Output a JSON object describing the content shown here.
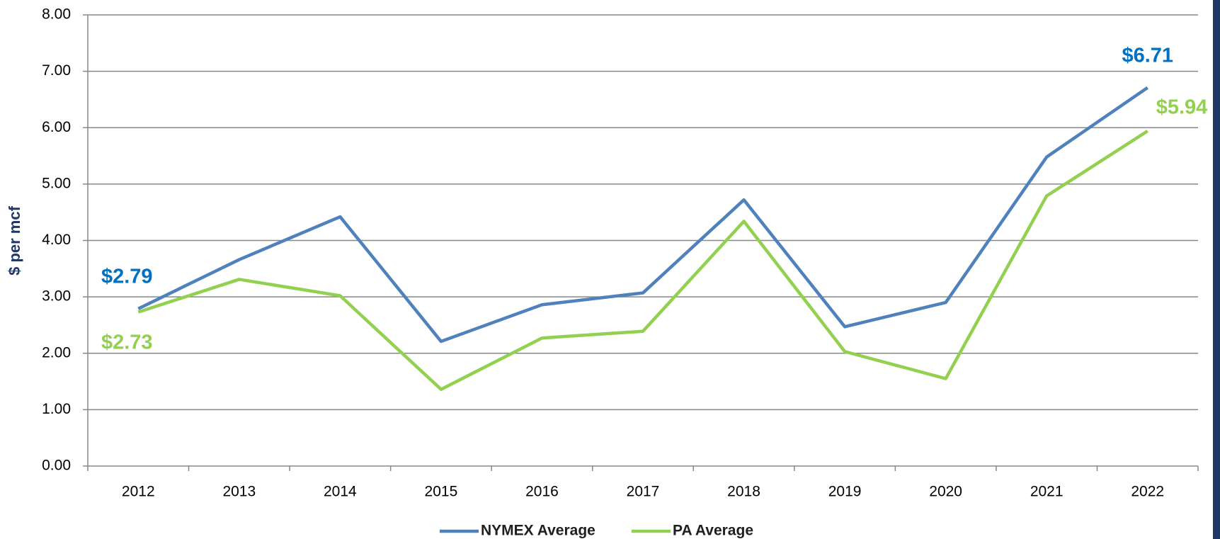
{
  "chart_data": {
    "type": "line",
    "y_label": "$ per mcf",
    "categories": [
      "2012",
      "2013",
      "2014",
      "2015",
      "2016",
      "2017",
      "2018",
      "2019",
      "2020",
      "2021",
      "2022"
    ],
    "series": [
      {
        "name": "NYMEX Average",
        "color": "#4f81bd",
        "label_color": "#0070c0",
        "values": [
          2.79,
          3.66,
          4.42,
          2.21,
          2.86,
          3.07,
          4.72,
          2.47,
          2.9,
          5.48,
          6.71
        ],
        "value_labels": [
          "$2.79",
          null,
          null,
          null,
          null,
          null,
          null,
          null,
          null,
          null,
          "$6.71"
        ]
      },
      {
        "name": "PA Average",
        "color": "#92d050",
        "label_color": "#92d050",
        "values": [
          2.73,
          3.31,
          3.02,
          1.36,
          2.27,
          2.39,
          4.34,
          2.03,
          1.55,
          4.79,
          5.94
        ],
        "value_labels": [
          "$2.73",
          null,
          null,
          null,
          null,
          null,
          null,
          null,
          null,
          null,
          "$5.94"
        ]
      }
    ],
    "ylim": [
      0,
      8
    ],
    "yticks": [
      {
        "value": 0,
        "label": "0.00"
      },
      {
        "value": 1,
        "label": "1.00"
      },
      {
        "value": 2,
        "label": "2.00"
      },
      {
        "value": 3,
        "label": "3.00"
      },
      {
        "value": 4,
        "label": "4.00"
      },
      {
        "value": 5,
        "label": "5.00"
      },
      {
        "value": 6,
        "label": "6.00"
      },
      {
        "value": 7,
        "label": "7.00"
      },
      {
        "value": 8,
        "label": "8.00"
      }
    ],
    "grid": true,
    "legend": "bottom"
  }
}
